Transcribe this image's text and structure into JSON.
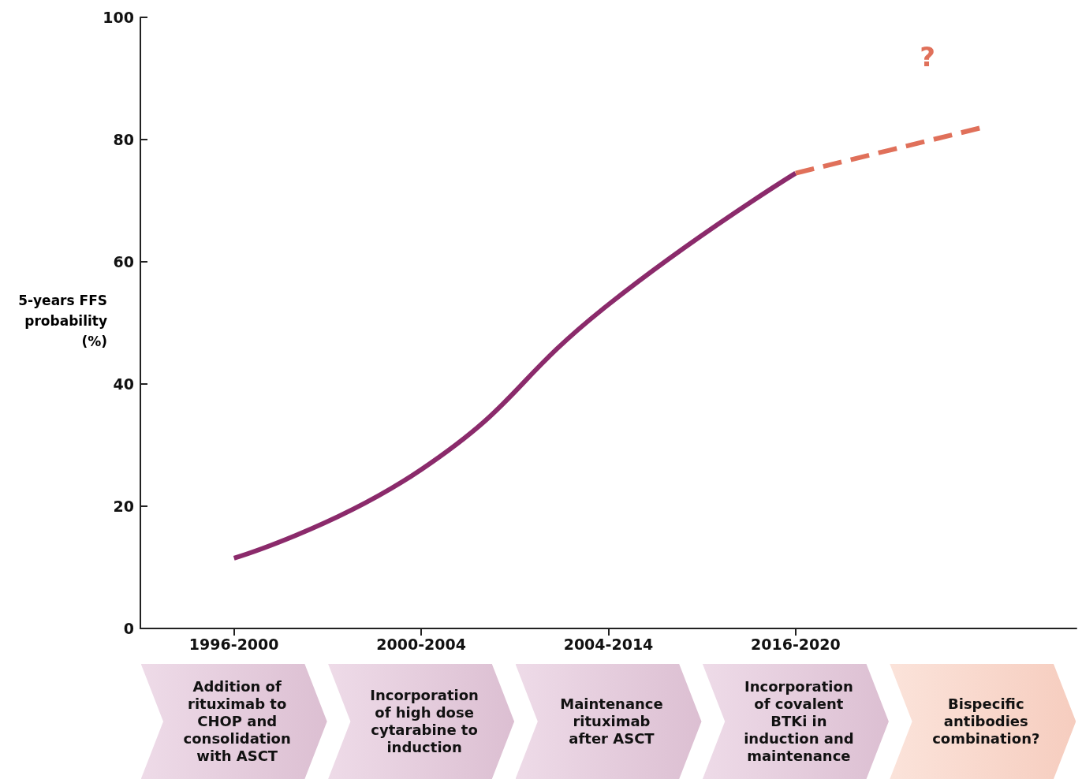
{
  "chart_data": {
    "type": "line",
    "ylabel": "5-years FFS probability (%)",
    "categories": [
      "1996-2000",
      "2000-2004",
      "2004-2014",
      "2016-2020",
      null
    ],
    "series": [
      {
        "color": "#8b2a6b",
        "values": [
          11.5,
          26,
          53,
          74.5,
          null
        ],
        "line_style": "solid"
      },
      {
        "color": "#e0705a",
        "values": [
          null,
          null,
          null,
          74.5,
          82
        ],
        "line_style": "dashed"
      }
    ],
    "ylim": [
      0,
      100
    ],
    "yticks": [
      0,
      20,
      40,
      60,
      80,
      100
    ],
    "grid": false,
    "marker": "none",
    "annotations": [
      "Addition of rituximab to CHOP and consolidation with ASCT",
      "Incorporation of high dose cytarabine to induction",
      "Maintenance rituximab after ASCT",
      "Incorporation of covalent BTKi in induction and maintenance",
      "Bispecific antibodies combination?",
      "?"
    ]
  }
}
